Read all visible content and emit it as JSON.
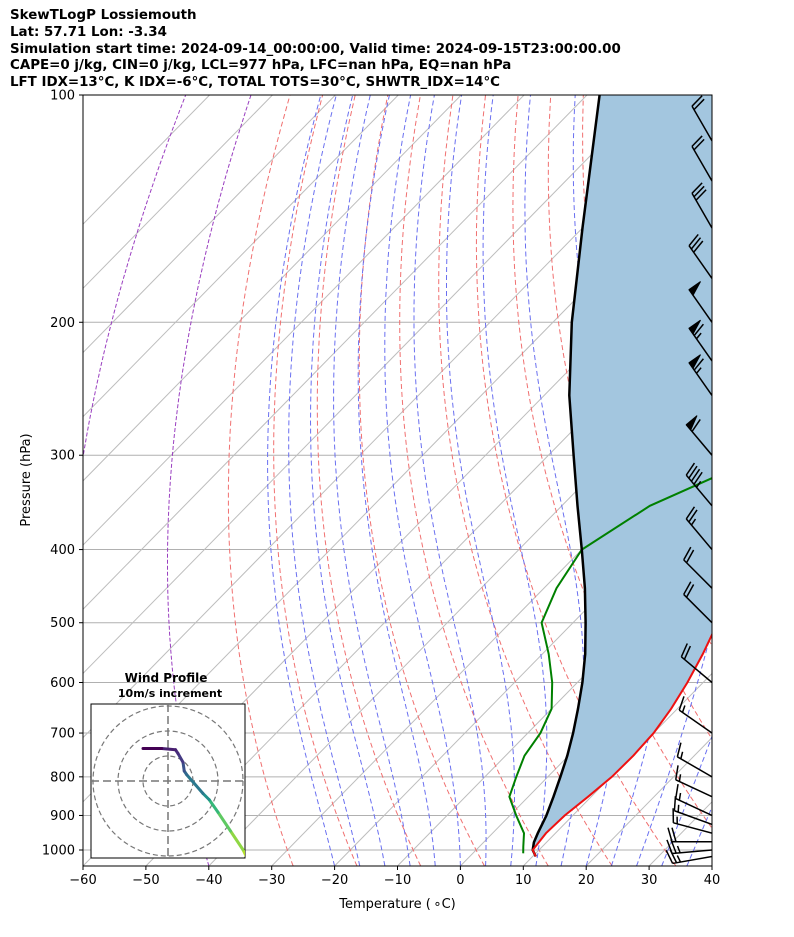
{
  "header": {
    "line1": "SkewTLogP Lossiemouth",
    "line2": "Lat: 57.71   Lon: -3.34",
    "line3": "Simulation start time: 2024-09-14_00:00:00, Valid time: 2024-09-15T23:00:00.00",
    "line4": "CAPE=0 j/kg, CIN=0 j/kg, LCL=977 hPa, LFC=nan hPa, EQ=nan hPa",
    "line5": "LFT IDX=13°C, K IDX=-6°C, TOTAL TOTS=30°C, SHWTR_IDX=14°C"
  },
  "chart_data": {
    "type": "line",
    "subtype": "skew-T log-P diagram",
    "xlabel": "Temperature ( ∘C)",
    "ylabel": "Pressure (hPa)",
    "xlim": [
      -60,
      40
    ],
    "ylim": [
      1050,
      100
    ],
    "y_scale": "log",
    "x_ticks": [
      "−60",
      "−50",
      "−40",
      "−30",
      "−20",
      "−10",
      "0",
      "10",
      "20",
      "30",
      "40"
    ],
    "y_ticks": [
      "100",
      "200",
      "300",
      "400",
      "500",
      "600",
      "700",
      "800",
      "900",
      "1000"
    ],
    "grid": true,
    "series": [
      {
        "role": "temperature",
        "color": "#ee1111",
        "points": [
          [
            1020,
            10.5
          ],
          [
            1000,
            9
          ],
          [
            950,
            8.5
          ],
          [
            900,
            8.7
          ],
          [
            850,
            9.5
          ],
          [
            800,
            10.2
          ],
          [
            750,
            10.3
          ],
          [
            700,
            10
          ],
          [
            650,
            9
          ],
          [
            600,
            7.5
          ],
          [
            550,
            5.5
          ],
          [
            500,
            3
          ],
          [
            450,
            0
          ],
          [
            400,
            -2
          ],
          [
            350,
            -3
          ],
          [
            320,
            -4
          ],
          [
            300,
            -7
          ],
          [
            275,
            -12
          ],
          [
            250,
            -18
          ],
          [
            230,
            -22
          ],
          [
            210,
            -26
          ],
          [
            200,
            -26
          ],
          [
            185,
            -23
          ],
          [
            170,
            -21
          ],
          [
            155,
            -20
          ],
          [
            140,
            -20
          ],
          [
            130,
            -18.5
          ],
          [
            120,
            -16.5
          ],
          [
            110,
            -16
          ],
          [
            100,
            -15
          ]
        ]
      },
      {
        "role": "dewpoint",
        "color": "#008000",
        "points": [
          [
            1010,
            8
          ],
          [
            990,
            7
          ],
          [
            950,
            5
          ],
          [
            900,
            1
          ],
          [
            850,
            -3
          ],
          [
            800,
            -5
          ],
          [
            750,
            -7
          ],
          [
            700,
            -8
          ],
          [
            650,
            -10
          ],
          [
            600,
            -14
          ],
          [
            550,
            -19
          ],
          [
            500,
            -25
          ],
          [
            450,
            -28
          ],
          [
            400,
            -30
          ],
          [
            350,
            -26
          ],
          [
            310,
            -18
          ],
          [
            290,
            -18
          ],
          [
            270,
            -18.5
          ],
          [
            250,
            -20
          ],
          [
            225,
            -25
          ],
          [
            210,
            -24
          ],
          [
            190,
            -25
          ],
          [
            180,
            -29
          ],
          [
            165,
            -33
          ],
          [
            150,
            -32
          ],
          [
            140,
            -33
          ],
          [
            120,
            -36
          ],
          [
            100,
            -40
          ]
        ]
      },
      {
        "role": "parcel profile",
        "color": "#000000",
        "points": [
          [
            1020,
            10.5
          ],
          [
            1000,
            9
          ],
          [
            977,
            8
          ],
          [
            950,
            7.2
          ],
          [
            900,
            5.8
          ],
          [
            850,
            4
          ],
          [
            800,
            2
          ],
          [
            750,
            -0.2
          ],
          [
            700,
            -2.8
          ],
          [
            650,
            -5.8
          ],
          [
            600,
            -9.2
          ],
          [
            550,
            -13.2
          ],
          [
            500,
            -18
          ],
          [
            450,
            -23.5
          ],
          [
            400,
            -30
          ],
          [
            350,
            -37.5
          ],
          [
            300,
            -46
          ],
          [
            250,
            -56
          ],
          [
            200,
            -67
          ],
          [
            150,
            -80
          ],
          [
            100,
            -98
          ]
        ]
      }
    ],
    "wind_barbs": {
      "note": "wind speed in knots, direction in degrees (from)",
      "barbs": [
        {
          "p": 1020,
          "dir": 260,
          "spd": 25
        },
        {
          "p": 1000,
          "dir": 265,
          "spd": 25
        },
        {
          "p": 975,
          "dir": 270,
          "spd": 20
        },
        {
          "p": 950,
          "dir": 285,
          "spd": 15
        },
        {
          "p": 925,
          "dir": 290,
          "spd": 15
        },
        {
          "p": 900,
          "dir": 295,
          "spd": 15
        },
        {
          "p": 850,
          "dir": 295,
          "spd": 15
        },
        {
          "p": 800,
          "dir": 300,
          "spd": 15
        },
        {
          "p": 700,
          "dir": 305,
          "spd": 15
        },
        {
          "p": 600,
          "dir": 310,
          "spd": 20
        },
        {
          "p": 500,
          "dir": 315,
          "spd": 20
        },
        {
          "p": 450,
          "dir": 315,
          "spd": 20
        },
        {
          "p": 400,
          "dir": 320,
          "spd": 25
        },
        {
          "p": 350,
          "dir": 320,
          "spd": 45
        },
        {
          "p": 300,
          "dir": 320,
          "spd": 60
        },
        {
          "p": 250,
          "dir": 325,
          "spd": 65
        },
        {
          "p": 225,
          "dir": 325,
          "spd": 65
        },
        {
          "p": 200,
          "dir": 325,
          "spd": 50
        },
        {
          "p": 175,
          "dir": 325,
          "spd": 30
        },
        {
          "p": 150,
          "dir": 330,
          "spd": 30
        },
        {
          "p": 130,
          "dir": 330,
          "spd": 20
        },
        {
          "p": 115,
          "dir": 330,
          "spd": 20
        },
        {
          "p": 100,
          "dir": 330,
          "spd": 20
        }
      ]
    },
    "inset": {
      "title": "Wind Profile",
      "subtitle": "10m/s increment",
      "rings": 3,
      "hodograph_uv": [
        [
          6.5,
          -6.5
        ],
        [
          6,
          -5.5
        ],
        [
          5,
          -4
        ],
        [
          4,
          -2.5
        ],
        [
          3.3,
          -1.5
        ],
        [
          2.8,
          -1
        ],
        [
          1.5,
          0.5
        ],
        [
          1.3,
          0.8
        ],
        [
          1.2,
          1.5
        ],
        [
          0.8,
          2.2
        ],
        [
          0.6,
          2.5
        ],
        [
          -0.5,
          2.6
        ],
        [
          -2,
          2.6
        ]
      ]
    }
  }
}
